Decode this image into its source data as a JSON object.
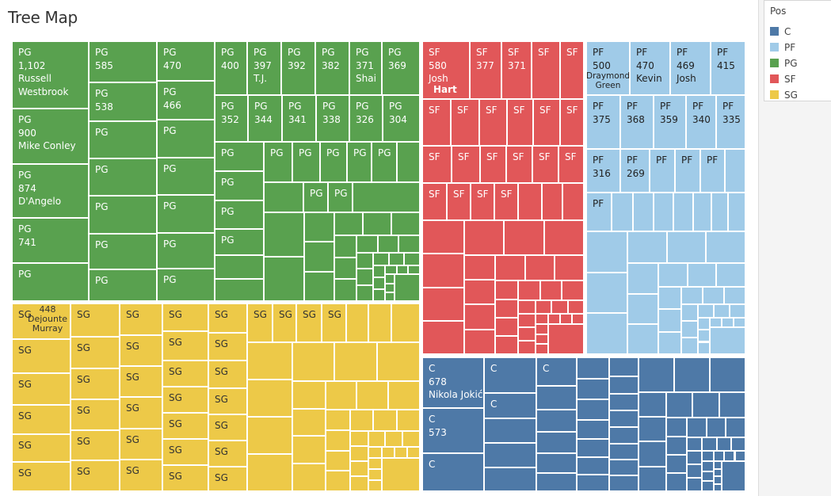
{
  "title": "Tree Map",
  "legend": {
    "title": "Pos",
    "items": [
      {
        "label": "C",
        "color": "#4E79A7"
      },
      {
        "label": "PF",
        "color": "#A0CBE8"
      },
      {
        "label": "PG",
        "color": "#59A14F"
      },
      {
        "label": "SF",
        "color": "#E15759"
      },
      {
        "label": "SG",
        "color": "#EDC948"
      }
    ]
  },
  "treemap": {
    "groups": [
      {
        "pos": "PG",
        "color": "#59A14F",
        "text_color": "#ffffff",
        "cells": [
          {
            "lines": [
              "PG",
              "1,102",
              "Russell",
              "Westbrook"
            ]
          },
          {
            "lines": [
              "PG",
              "900",
              "Mike Conley"
            ]
          },
          {
            "lines": [
              "PG",
              "874",
              "D'Angelo"
            ]
          },
          {
            "lines": [
              "PG",
              "741"
            ]
          },
          {
            "lines": [
              "PG"
            ]
          },
          {
            "lines": [
              "PG",
              "585"
            ]
          },
          {
            "lines": [
              "PG",
              "538"
            ]
          },
          {
            "lines": [
              "PG"
            ]
          },
          {
            "lines": [
              "PG"
            ]
          },
          {
            "lines": [
              "PG"
            ]
          },
          {
            "lines": [
              "PG"
            ]
          },
          {
            "lines": [
              "PG"
            ]
          },
          {
            "lines": [
              "PG",
              "470"
            ]
          },
          {
            "lines": [
              "PG",
              "466"
            ]
          },
          {
            "lines": [
              "PG"
            ]
          },
          {
            "lines": [
              "PG"
            ]
          },
          {
            "lines": [
              "PG"
            ]
          },
          {
            "lines": [
              "PG"
            ]
          },
          {
            "lines": [
              "PG"
            ]
          },
          {
            "lines": [
              "PG",
              "400"
            ]
          },
          {
            "lines": [
              "PG",
              "397",
              "T.J."
            ]
          },
          {
            "lines": [
              "PG",
              "392"
            ]
          },
          {
            "lines": [
              "PG",
              "382"
            ]
          },
          {
            "lines": [
              "PG",
              "371",
              "Shai"
            ]
          },
          {
            "lines": [
              "PG",
              "369"
            ]
          },
          {
            "lines": [
              "PG",
              "352"
            ]
          },
          {
            "lines": [
              "PG",
              "344"
            ]
          },
          {
            "lines": [
              "PG",
              "341"
            ]
          },
          {
            "lines": [
              "PG",
              "338"
            ]
          },
          {
            "lines": [
              "PG",
              "326"
            ]
          },
          {
            "lines": [
              "PG",
              "304"
            ]
          },
          {
            "lines": [
              "PG"
            ]
          },
          {
            "lines": [
              "PG"
            ]
          },
          {
            "lines": [
              "PG"
            ]
          },
          {
            "lines": [
              "PG"
            ]
          },
          {
            "lines": [
              "PG"
            ]
          },
          {
            "lines": [
              "PG"
            ]
          },
          {
            "lines": [
              "PG"
            ]
          },
          {
            "lines": [
              "PG"
            ]
          },
          {
            "lines": [
              "PG"
            ]
          },
          {
            "lines": [
              "PG"
            ]
          },
          {
            "lines": [
              "PG"
            ]
          }
        ]
      },
      {
        "pos": "SG",
        "color": "#EDC948",
        "text_color": "#333333",
        "cells": [
          {
            "lines": [
              "SG"
            ],
            "value": "448",
            "name": "Dejounte Murray"
          },
          {
            "lines": [
              "SG"
            ]
          },
          {
            "lines": [
              "SG"
            ]
          },
          {
            "lines": [
              "SG"
            ]
          },
          {
            "lines": [
              "SG"
            ]
          },
          {
            "lines": [
              "SG"
            ]
          },
          {
            "lines": [
              "SG"
            ]
          },
          {
            "lines": [
              "SG"
            ]
          },
          {
            "lines": [
              "SG"
            ]
          },
          {
            "lines": [
              "SG"
            ]
          },
          {
            "lines": [
              "SG"
            ]
          },
          {
            "lines": [
              "SG"
            ]
          },
          {
            "lines": [
              "SG"
            ]
          },
          {
            "lines": [
              "SG"
            ]
          },
          {
            "lines": [
              "SG"
            ]
          },
          {
            "lines": [
              "SG"
            ]
          },
          {
            "lines": [
              "SG"
            ]
          },
          {
            "lines": [
              "SG"
            ]
          },
          {
            "lines": [
              "SG"
            ]
          },
          {
            "lines": [
              "SG"
            ]
          },
          {
            "lines": [
              "SG"
            ]
          },
          {
            "lines": [
              "SG"
            ]
          },
          {
            "lines": [
              "SG"
            ]
          },
          {
            "lines": [
              "SG"
            ]
          },
          {
            "lines": [
              "SG"
            ]
          },
          {
            "lines": [
              "SG"
            ]
          },
          {
            "lines": [
              "SG"
            ]
          },
          {
            "lines": [
              "SG"
            ]
          },
          {
            "lines": [
              "SG"
            ]
          },
          {
            "lines": [
              "SG"
            ]
          },
          {
            "lines": [
              "SG"
            ]
          },
          {
            "lines": [
              "SG"
            ]
          },
          {
            "lines": [
              "SG"
            ]
          },
          {
            "lines": [
              "SG"
            ]
          },
          {
            "lines": [
              "SG"
            ]
          },
          {
            "lines": [
              "SG"
            ]
          }
        ]
      },
      {
        "pos": "SF",
        "color": "#E15759",
        "text_color": "#ffffff",
        "cells": [
          {
            "lines": [
              "SF",
              "580",
              "Josh"
            ],
            "name": "Hart"
          },
          {
            "lines": [
              "SF",
              "377"
            ]
          },
          {
            "lines": [
              "SF",
              "371"
            ]
          },
          {
            "lines": [
              "SF"
            ]
          },
          {
            "lines": [
              "SF"
            ]
          },
          {
            "lines": [
              "SF"
            ]
          },
          {
            "lines": [
              "SF"
            ]
          },
          {
            "lines": [
              "SF"
            ]
          },
          {
            "lines": [
              "SF"
            ]
          },
          {
            "lines": [
              "SF"
            ]
          },
          {
            "lines": [
              "SF"
            ]
          },
          {
            "lines": [
              "SF"
            ]
          },
          {
            "lines": [
              "SF"
            ]
          },
          {
            "lines": [
              "SF"
            ]
          },
          {
            "lines": [
              "SF"
            ]
          },
          {
            "lines": [
              "SF"
            ]
          },
          {
            "lines": [
              "SF"
            ]
          },
          {
            "lines": [
              "SF"
            ]
          },
          {
            "lines": [
              "SF"
            ]
          },
          {
            "lines": [
              "SF"
            ]
          },
          {
            "lines": [
              "SF"
            ]
          }
        ]
      },
      {
        "pos": "PF",
        "color": "#A0CBE8",
        "text_color": "#222222",
        "cells": [
          {
            "lines": [
              "PF",
              "500"
            ],
            "name": "Draymond Green"
          },
          {
            "lines": [
              "PF",
              "470",
              "Kevin"
            ]
          },
          {
            "lines": [
              "PF",
              "469",
              "Josh"
            ]
          },
          {
            "lines": [
              "PF",
              "415"
            ]
          },
          {
            "lines": [
              "PF",
              "375"
            ]
          },
          {
            "lines": [
              "PF",
              "368"
            ]
          },
          {
            "lines": [
              "PF",
              "359"
            ]
          },
          {
            "lines": [
              "PF",
              "340"
            ]
          },
          {
            "lines": [
              "PF",
              "335"
            ]
          },
          {
            "lines": [
              "PF",
              "316"
            ]
          },
          {
            "lines": [
              "PF",
              "269"
            ]
          },
          {
            "lines": [
              "PF"
            ]
          },
          {
            "lines": [
              "PF"
            ]
          },
          {
            "lines": [
              "PF"
            ]
          },
          {
            "lines": [
              "PF"
            ]
          }
        ]
      },
      {
        "pos": "C",
        "color": "#4E79A7",
        "text_color": "#ffffff",
        "cells": [
          {
            "lines": [
              "C",
              "678",
              "Nikola Jokić"
            ]
          },
          {
            "lines": [
              "C",
              "573"
            ]
          },
          {
            "lines": [
              "C"
            ]
          },
          {
            "lines": [
              "C"
            ]
          },
          {
            "lines": [
              "C"
            ]
          },
          {
            "lines": [
              "C"
            ]
          }
        ]
      }
    ]
  }
}
